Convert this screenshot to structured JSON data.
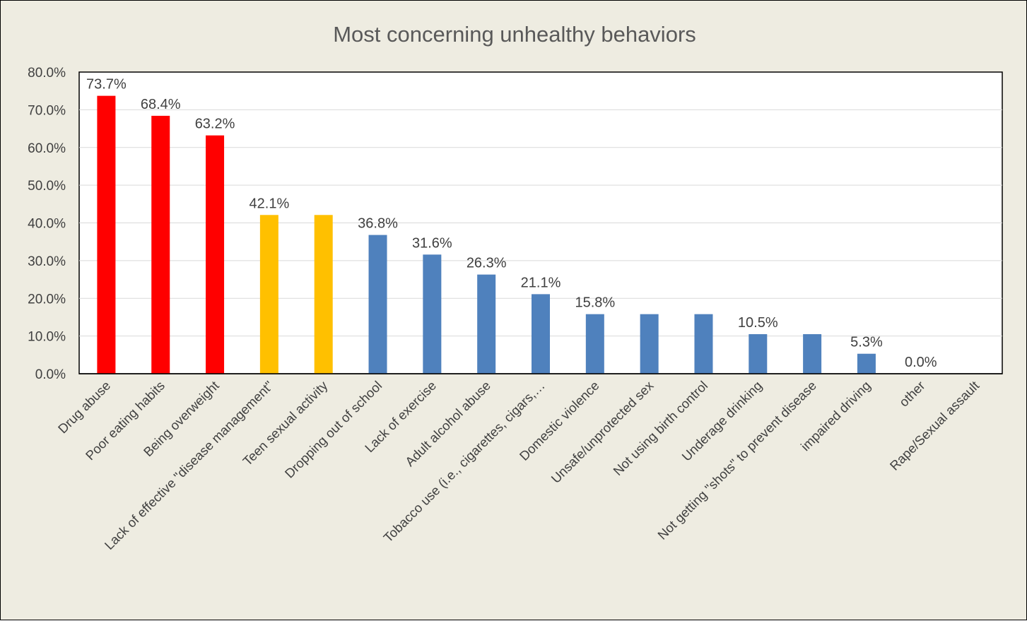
{
  "chart_data": {
    "type": "bar",
    "title": "Most concerning unhealthy behaviors",
    "xlabel": "",
    "ylabel": "",
    "ylim": [
      0,
      80
    ],
    "yticks": [
      "0.0%",
      "10.0%",
      "20.0%",
      "30.0%",
      "40.0%",
      "50.0%",
      "60.0%",
      "70.0%",
      "80.0%"
    ],
    "grid": true,
    "legend": "none",
    "categories": [
      "Drug abuse",
      "Poor eating habits",
      "Being overweight",
      "Lack of effective \"disease management\"",
      "Teen sexual activity",
      "Dropping out of school",
      "Lack of exercise",
      "Adult alcohol abuse",
      "Tobacco use (i.e., cigarettes, cigars,…",
      "Domestic violence",
      "Unsafe/unprotected sex",
      "Not using birth control",
      "Underage drinking",
      "Not getting \"shots\" to prevent disease",
      "impaired driving",
      "other",
      "Rape/Sexual assault"
    ],
    "values": [
      73.7,
      68.4,
      63.2,
      42.1,
      42.1,
      36.8,
      31.6,
      26.3,
      21.1,
      15.8,
      15.8,
      15.8,
      10.5,
      10.5,
      5.3,
      0.0,
      0.0
    ],
    "data_labels": [
      "73.7%",
      "68.4%",
      "63.2%",
      "42.1%",
      "",
      "36.8%",
      "31.6%",
      "26.3%",
      "21.1%",
      "15.8%",
      "",
      "",
      "10.5%",
      "",
      "5.3%",
      "0.0%",
      ""
    ],
    "bar_colors": [
      "#FF0000",
      "#FF0000",
      "#FF0000",
      "#FFC000",
      "#FFC000",
      "#4F81BD",
      "#4F81BD",
      "#4F81BD",
      "#4F81BD",
      "#4F81BD",
      "#4F81BD",
      "#4F81BD",
      "#4F81BD",
      "#4F81BD",
      "#4F81BD",
      "#4F81BD",
      "#4F81BD"
    ],
    "colors": {
      "background": "#EEECE1",
      "plot_area": "#FFFFFF",
      "gridline": "#D9D9D9",
      "text": "#404040"
    }
  }
}
